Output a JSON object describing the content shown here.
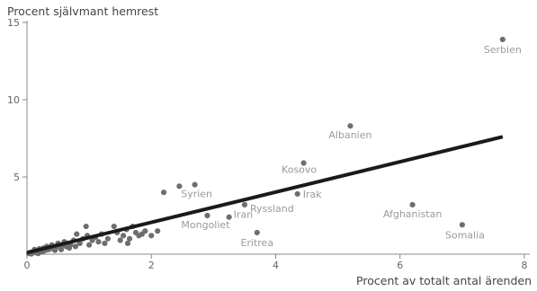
{
  "chart_data": {
    "type": "scatter",
    "ylabel": "Procent självmant hemrest",
    "xlabel": "Procent av totalt antal ärenden",
    "xlim": [
      0,
      8
    ],
    "ylim": [
      0,
      15
    ],
    "x_ticks": [
      0,
      2,
      4,
      6,
      8
    ],
    "y_ticks": [
      5,
      10,
      15
    ],
    "grid": false,
    "colors": {
      "point": "#6e6e6e",
      "line": "#1a1a1a",
      "label": "#9a9a9a",
      "axis": "#888888"
    },
    "trendline": {
      "x": [
        0,
        7.65
      ],
      "y": [
        0.1,
        7.6
      ]
    },
    "labeled_points": [
      {
        "label": "Serbien",
        "x": 7.65,
        "y": 13.9
      },
      {
        "label": "Albanien",
        "x": 5.2,
        "y": 8.3
      },
      {
        "label": "Kosovo",
        "x": 4.45,
        "y": 5.9
      },
      {
        "label": "Syrien",
        "x": 2.7,
        "y": 4.5
      },
      {
        "label": "Irak",
        "x": 4.35,
        "y": 3.9
      },
      {
        "label": "Ryssland",
        "x": 3.5,
        "y": 3.2
      },
      {
        "label": "Iran",
        "x": 3.25,
        "y": 2.4
      },
      {
        "label": "Mongoliet",
        "x": 2.9,
        "y": 2.5
      },
      {
        "label": "Eritrea",
        "x": 3.7,
        "y": 1.4
      },
      {
        "label": "Afghanistan",
        "x": 6.2,
        "y": 3.2
      },
      {
        "label": "Somalia",
        "x": 7.0,
        "y": 1.9
      }
    ],
    "unlabeled_points": [
      [
        0.03,
        0.05
      ],
      [
        0.05,
        0.1
      ],
      [
        0.07,
        0.02
      ],
      [
        0.1,
        0.15
      ],
      [
        0.12,
        0.3
      ],
      [
        0.14,
        0.1
      ],
      [
        0.16,
        0.2
      ],
      [
        0.18,
        0.05
      ],
      [
        0.2,
        0.35
      ],
      [
        0.22,
        0.2
      ],
      [
        0.25,
        0.15
      ],
      [
        0.27,
        0.4
      ],
      [
        0.3,
        0.25
      ],
      [
        0.32,
        0.5
      ],
      [
        0.35,
        0.3
      ],
      [
        0.38,
        0.45
      ],
      [
        0.4,
        0.6
      ],
      [
        0.42,
        0.35
      ],
      [
        0.45,
        0.25
      ],
      [
        0.48,
        0.5
      ],
      [
        0.5,
        0.7
      ],
      [
        0.53,
        0.45
      ],
      [
        0.55,
        0.3
      ],
      [
        0.58,
        0.6
      ],
      [
        0.6,
        0.8
      ],
      [
        0.63,
        0.5
      ],
      [
        0.66,
        0.7
      ],
      [
        0.68,
        0.4
      ],
      [
        0.7,
        0.6
      ],
      [
        0.75,
        0.9
      ],
      [
        0.78,
        0.5
      ],
      [
        0.8,
        1.3
      ],
      [
        0.85,
        0.7
      ],
      [
        0.9,
        1.0
      ],
      [
        0.95,
        1.8
      ],
      [
        0.97,
        1.2
      ],
      [
        1.0,
        0.6
      ],
      [
        1.05,
        0.9
      ],
      [
        1.1,
        1.1
      ],
      [
        1.15,
        0.8
      ],
      [
        1.2,
        1.3
      ],
      [
        1.25,
        0.7
      ],
      [
        1.3,
        1.0
      ],
      [
        1.4,
        1.8
      ],
      [
        1.45,
        1.4
      ],
      [
        1.5,
        0.9
      ],
      [
        1.55,
        1.2
      ],
      [
        1.6,
        1.6
      ],
      [
        1.62,
        0.7
      ],
      [
        1.65,
        1.0
      ],
      [
        1.7,
        1.8
      ],
      [
        1.75,
        1.4
      ],
      [
        1.8,
        1.2
      ],
      [
        1.85,
        1.3
      ],
      [
        1.9,
        1.5
      ],
      [
        2.1,
        1.5
      ],
      [
        2.2,
        4.0
      ],
      [
        2.45,
        4.4
      ],
      [
        2.0,
        1.2
      ]
    ]
  }
}
